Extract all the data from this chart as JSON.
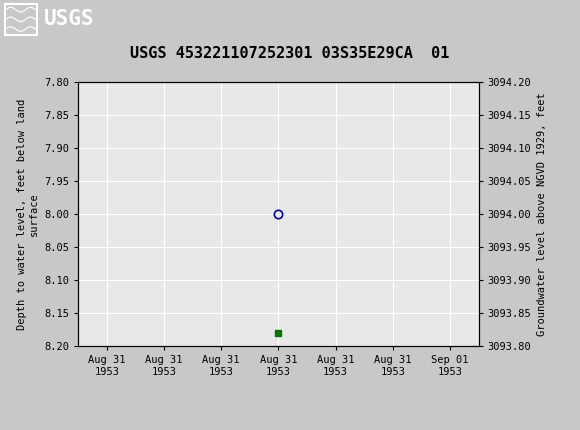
{
  "title": "USGS 453221107252301 03S35E29CA  01",
  "ylabel_left": "Depth to water level, feet below land\nsurface",
  "ylabel_right": "Groundwater level above NGVD 1929, feet",
  "ylim_left": [
    7.8,
    8.2
  ],
  "ylim_right": [
    3094.2,
    3093.8
  ],
  "y_ticks_left": [
    7.8,
    7.85,
    7.9,
    7.95,
    8.0,
    8.05,
    8.1,
    8.15,
    8.2
  ],
  "y_ticks_right": [
    3094.2,
    3094.15,
    3094.1,
    3094.05,
    3094.0,
    3093.95,
    3093.9,
    3093.85,
    3093.8
  ],
  "y_tick_labels_right": [
    "3094.20",
    "3094.15",
    "3094.10",
    "3094.05",
    "3094.00",
    "3093.95",
    "3093.90",
    "3093.85",
    "3093.80"
  ],
  "data_point_x": 3,
  "data_point_depth": 8.0,
  "data_point_color": "#0000bb",
  "approved_x": 3,
  "approved_y": 8.18,
  "approved_color": "#007700",
  "header_bg_color": "#006633",
  "header_text_color": "#ffffff",
  "plot_bg_color": "#e8e8e8",
  "fig_bg_color": "#c8c8c8",
  "grid_color": "#ffffff",
  "font_family": "DejaVu Sans Mono",
  "title_fontsize": 11,
  "tick_label_fontsize": 7.5,
  "axis_label_fontsize": 7.5,
  "legend_fontsize": 8.5,
  "x_tick_labels": [
    "Aug 31\n1953",
    "Aug 31\n1953",
    "Aug 31\n1953",
    "Aug 31\n1953",
    "Aug 31\n1953",
    "Aug 31\n1953",
    "Sep 01\n1953"
  ],
  "x_tick_positions": [
    0,
    1,
    2,
    3,
    4,
    5,
    6
  ],
  "xlim": [
    -0.5,
    6.5
  ]
}
